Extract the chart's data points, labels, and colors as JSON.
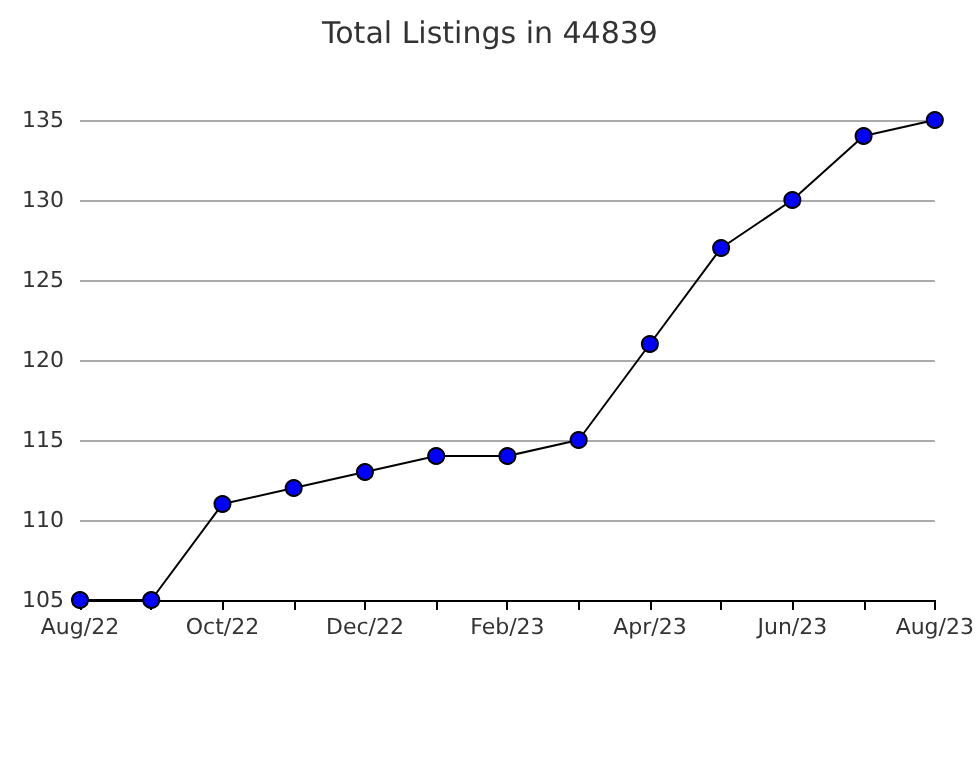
{
  "chart_data": {
    "type": "line",
    "title": "Total Listings in 44839",
    "categories": [
      "Aug/22",
      null,
      "Oct/22",
      null,
      "Dec/22",
      null,
      "Feb/23",
      null,
      "Apr/23",
      null,
      "Jun/23",
      null,
      "Aug/23"
    ],
    "series": [
      {
        "color": "#0000ff",
        "values": [
          105,
          105,
          111,
          112,
          113,
          114,
          114,
          115,
          121,
          127,
          130,
          134,
          135
        ]
      }
    ],
    "ylim": [
      105,
      135
    ],
    "yticks": [
      105,
      110,
      115,
      120,
      125,
      130,
      135
    ],
    "grid": "y",
    "marker": "circle",
    "line_style": "solid"
  }
}
